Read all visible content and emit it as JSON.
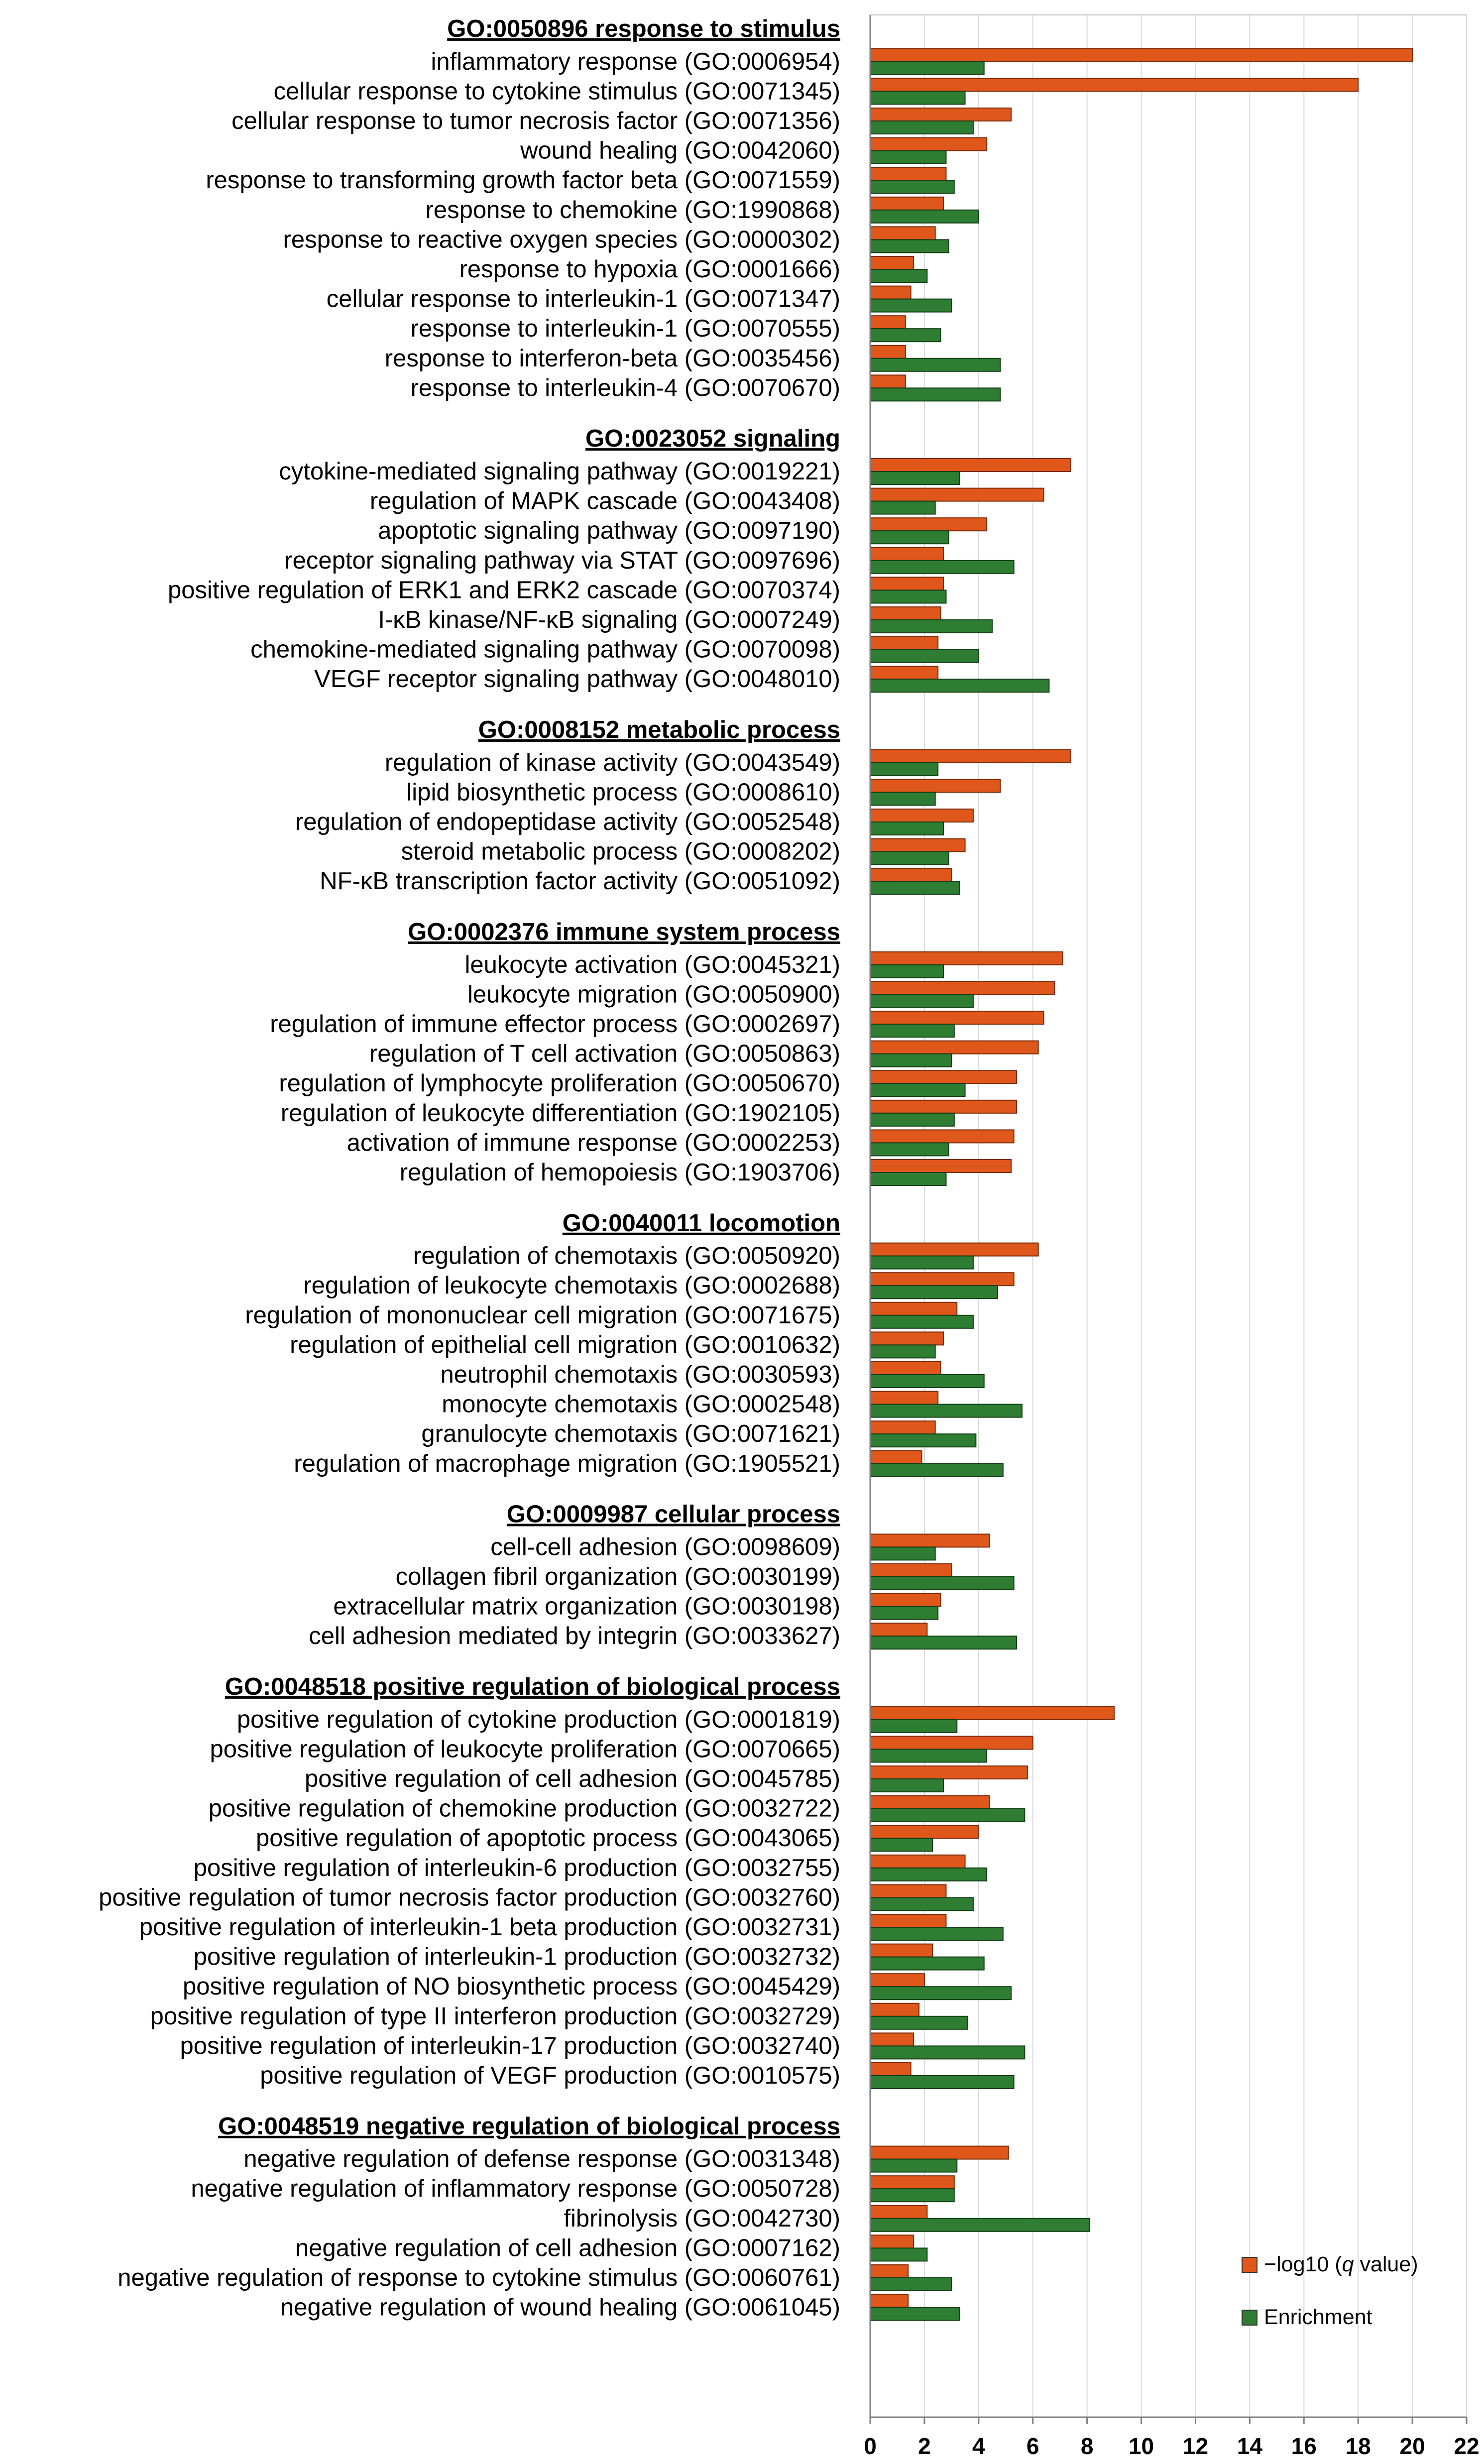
{
  "chart_data": {
    "type": "bar",
    "orientation": "horizontal",
    "xlim": [
      0,
      22
    ],
    "xticks": [
      0,
      2,
      4,
      6,
      8,
      10,
      12,
      14,
      16,
      18,
      20,
      22
    ],
    "grid": true,
    "legend": {
      "placement": "bottom-right",
      "entries": [
        {
          "name": "−log10 (",
          "italic": "q",
          "suffix": " value)",
          "color": "#E0571B"
        },
        {
          "name": "Enrichment",
          "color": "#2E7D32"
        }
      ]
    },
    "series_colors": {
      "q": "#E0571B",
      "enrichment": "#2E7D32"
    },
    "groups": [
      {
        "title": "GO:0050896 response to stimulus",
        "items": [
          {
            "label": "inflammatory response (GO:0006954)",
            "q": 20.0,
            "enrichment": 4.2
          },
          {
            "label": "cellular response to cytokine stimulus (GO:0071345)",
            "q": 18.0,
            "enrichment": 3.5
          },
          {
            "label": "cellular response to tumor necrosis factor (GO:0071356)",
            "q": 5.2,
            "enrichment": 3.8
          },
          {
            "label": "wound healing (GO:0042060)",
            "q": 4.3,
            "enrichment": 2.8
          },
          {
            "label": "response to transforming growth factor beta (GO:0071559)",
            "q": 2.8,
            "enrichment": 3.1
          },
          {
            "label": "response to chemokine (GO:1990868)",
            "q": 2.7,
            "enrichment": 4.0
          },
          {
            "label": "response to reactive oxygen species (GO:0000302)",
            "q": 2.4,
            "enrichment": 2.9
          },
          {
            "label": "response to hypoxia (GO:0001666)",
            "q": 1.6,
            "enrichment": 2.1
          },
          {
            "label": "cellular response to interleukin-1 (GO:0071347)",
            "q": 1.5,
            "enrichment": 3.0
          },
          {
            "label": "response to interleukin-1 (GO:0070555)",
            "q": 1.3,
            "enrichment": 2.6
          },
          {
            "label": "response to interferon-beta (GO:0035456)",
            "q": 1.3,
            "enrichment": 4.8
          },
          {
            "label": "response to interleukin-4 (GO:0070670)",
            "q": 1.3,
            "enrichment": 4.8
          }
        ]
      },
      {
        "title": "GO:0023052 signaling",
        "items": [
          {
            "label": "cytokine-mediated signaling pathway (GO:0019221)",
            "q": 7.4,
            "enrichment": 3.3
          },
          {
            "label": "regulation of MAPK cascade (GO:0043408)",
            "q": 6.4,
            "enrichment": 2.4
          },
          {
            "label": "apoptotic signaling pathway (GO:0097190)",
            "q": 4.3,
            "enrichment": 2.9
          },
          {
            "label": "receptor signaling pathway via STAT (GO:0097696)",
            "q": 2.7,
            "enrichment": 5.3
          },
          {
            "label": "positive regulation of ERK1 and ERK2 cascade (GO:0070374)",
            "q": 2.7,
            "enrichment": 2.8
          },
          {
            "label": "I-κB kinase/NF-κB signaling (GO:0007249)",
            "q": 2.6,
            "enrichment": 4.5
          },
          {
            "label": "chemokine-mediated signaling pathway (GO:0070098)",
            "q": 2.5,
            "enrichment": 4.0
          },
          {
            "label": "VEGF receptor signaling pathway (GO:0048010)",
            "q": 2.5,
            "enrichment": 6.6
          }
        ]
      },
      {
        "title": "GO:0008152 metabolic process",
        "items": [
          {
            "label": "regulation of kinase activity (GO:0043549)",
            "q": 7.4,
            "enrichment": 2.5
          },
          {
            "label": "lipid biosynthetic process (GO:0008610)",
            "q": 4.8,
            "enrichment": 2.4
          },
          {
            "label": "regulation of endopeptidase activity (GO:0052548)",
            "q": 3.8,
            "enrichment": 2.7
          },
          {
            "label": "steroid metabolic process (GO:0008202)",
            "q": 3.5,
            "enrichment": 2.9
          },
          {
            "label": "NF-κB transcription factor activity (GO:0051092)",
            "q": 3.0,
            "enrichment": 3.3
          }
        ]
      },
      {
        "title": "GO:0002376 immune system process",
        "items": [
          {
            "label": "leukocyte activation (GO:0045321)",
            "q": 7.1,
            "enrichment": 2.7
          },
          {
            "label": "leukocyte migration (GO:0050900)",
            "q": 6.8,
            "enrichment": 3.8
          },
          {
            "label": "regulation of immune effector process (GO:0002697)",
            "q": 6.4,
            "enrichment": 3.1
          },
          {
            "label": "regulation of T cell activation (GO:0050863)",
            "q": 6.2,
            "enrichment": 3.0
          },
          {
            "label": "regulation of lymphocyte proliferation (GO:0050670)",
            "q": 5.4,
            "enrichment": 3.5
          },
          {
            "label": "regulation of leukocyte differentiation (GO:1902105)",
            "q": 5.4,
            "enrichment": 3.1
          },
          {
            "label": "activation of immune response (GO:0002253)",
            "q": 5.3,
            "enrichment": 2.9
          },
          {
            "label": "regulation of hemopoiesis (GO:1903706)",
            "q": 5.2,
            "enrichment": 2.8
          }
        ]
      },
      {
        "title": "GO:0040011 locomotion",
        "items": [
          {
            "label": "regulation of chemotaxis (GO:0050920)",
            "q": 6.2,
            "enrichment": 3.8
          },
          {
            "label": "regulation of leukocyte chemotaxis (GO:0002688)",
            "q": 5.3,
            "enrichment": 4.7
          },
          {
            "label": "regulation of mononuclear cell migration (GO:0071675)",
            "q": 3.2,
            "enrichment": 3.8
          },
          {
            "label": "regulation of epithelial cell migration (GO:0010632)",
            "q": 2.7,
            "enrichment": 2.4
          },
          {
            "label": "neutrophil chemotaxis (GO:0030593)",
            "q": 2.6,
            "enrichment": 4.2
          },
          {
            "label": "monocyte chemotaxis (GO:0002548)",
            "q": 2.5,
            "enrichment": 5.6
          },
          {
            "label": "granulocyte chemotaxis (GO:0071621)",
            "q": 2.4,
            "enrichment": 3.9
          },
          {
            "label": "regulation of macrophage migration (GO:1905521)",
            "q": 1.9,
            "enrichment": 4.9
          }
        ]
      },
      {
        "title": "GO:0009987 cellular process",
        "items": [
          {
            "label": "cell-cell adhesion (GO:0098609)",
            "q": 4.4,
            "enrichment": 2.4
          },
          {
            "label": "collagen fibril organization (GO:0030199)",
            "q": 3.0,
            "enrichment": 5.3
          },
          {
            "label": "extracellular matrix organization (GO:0030198)",
            "q": 2.6,
            "enrichment": 2.5
          },
          {
            "label": "cell adhesion mediated by integrin (GO:0033627)",
            "q": 2.1,
            "enrichment": 5.4
          }
        ]
      },
      {
        "title": "GO:0048518 positive regulation of biological  process",
        "items": [
          {
            "label": "positive regulation of cytokine production (GO:0001819)",
            "q": 9.0,
            "enrichment": 3.2
          },
          {
            "label": "positive regulation of leukocyte proliferation (GO:0070665)",
            "q": 6.0,
            "enrichment": 4.3
          },
          {
            "label": "positive regulation of cell adhesion (GO:0045785)",
            "q": 5.8,
            "enrichment": 2.7
          },
          {
            "label": "positive regulation of chemokine production (GO:0032722)",
            "q": 4.4,
            "enrichment": 5.7
          },
          {
            "label": "positive regulation of apoptotic process (GO:0043065)",
            "q": 4.0,
            "enrichment": 2.3
          },
          {
            "label": "positive regulation of interleukin-6 production (GO:0032755)",
            "q": 3.5,
            "enrichment": 4.3
          },
          {
            "label": "positive regulation of tumor necrosis factor production (GO:0032760)",
            "q": 2.8,
            "enrichment": 3.8
          },
          {
            "label": "positive regulation of interleukin-1 beta production (GO:0032731)",
            "q": 2.8,
            "enrichment": 4.9
          },
          {
            "label": "positive regulation of interleukin-1 production (GO:0032732)",
            "q": 2.3,
            "enrichment": 4.2
          },
          {
            "label": "positive regulation of NO biosynthetic process (GO:0045429)",
            "q": 2.0,
            "enrichment": 5.2
          },
          {
            "label": "positive regulation of type II interferon production (GO:0032729)",
            "q": 1.8,
            "enrichment": 3.6
          },
          {
            "label": "positive regulation of interleukin-17 production (GO:0032740)",
            "q": 1.6,
            "enrichment": 5.7
          },
          {
            "label": "positive regulation of VEGF production (GO:0010575)",
            "q": 1.5,
            "enrichment": 5.3
          }
        ]
      },
      {
        "title": "GO:0048519 negative regulation of biological  process",
        "items": [
          {
            "label": "negative regulation of defense response (GO:0031348)",
            "q": 5.1,
            "enrichment": 3.2
          },
          {
            "label": "negative regulation of inflammatory response (GO:0050728)",
            "q": 3.1,
            "enrichment": 3.1
          },
          {
            "label": "fibrinolysis (GO:0042730)",
            "q": 2.1,
            "enrichment": 8.1
          },
          {
            "label": "negative regulation of cell adhesion (GO:0007162)",
            "q": 1.6,
            "enrichment": 2.1
          },
          {
            "label": "negative regulation of response to cytokine stimulus (GO:0060761)",
            "q": 1.4,
            "enrichment": 3.0
          },
          {
            "label": "negative regulation of wound healing (GO:0061045)",
            "q": 1.4,
            "enrichment": 3.3
          }
        ]
      }
    ]
  }
}
